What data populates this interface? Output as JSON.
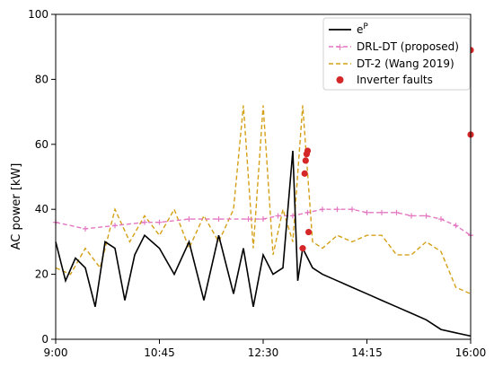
{
  "chart_data": {
    "type": "line",
    "title": "",
    "xlabel": "",
    "ylabel": "AC power [kW]",
    "xlim": [
      "9:00",
      "16:00"
    ],
    "ylim": [
      0,
      100
    ],
    "x_ticks": [
      "9:00",
      "10:45",
      "12:30",
      "14:15",
      "16:00"
    ],
    "y_ticks": [
      0,
      20,
      40,
      60,
      80,
      100
    ],
    "grid": false,
    "legend_position": "top-right",
    "legend": [
      "e^P",
      "DRL-DT (proposed)",
      "DT-2 (Wang 2019)",
      "Inverter faults"
    ],
    "colors": {
      "actual": "#000000",
      "drl_dt": "#e377c2",
      "dt2": "#d4a017",
      "faults": "#d62728"
    },
    "series": [
      {
        "name": "e^P",
        "style": "solid",
        "color": "#000000",
        "x": [
          "9:00",
          "9:10",
          "9:20",
          "9:30",
          "9:40",
          "9:50",
          "10:00",
          "10:10",
          "10:20",
          "10:30",
          "10:45",
          "11:00",
          "11:15",
          "11:30",
          "11:45",
          "12:00",
          "12:10",
          "12:20",
          "12:30",
          "12:40",
          "12:50",
          "13:00",
          "13:05",
          "13:10",
          "13:20",
          "13:30",
          "13:45",
          "14:00",
          "14:15",
          "14:30",
          "14:45",
          "15:00",
          "15:15",
          "15:30",
          "15:45",
          "16:00"
        ],
        "y": [
          30,
          18,
          25,
          22,
          10,
          30,
          28,
          12,
          26,
          32,
          28,
          20,
          30,
          12,
          32,
          14,
          28,
          10,
          26,
          20,
          22,
          58,
          18,
          28,
          22,
          20,
          18,
          16,
          14,
          12,
          10,
          8,
          6,
          3,
          2,
          1
        ]
      },
      {
        "name": "DRL-DT (proposed)",
        "style": "dash-plus",
        "color": "#e377c2",
        "x": [
          "9:00",
          "9:30",
          "10:00",
          "10:30",
          "10:45",
          "11:15",
          "11:45",
          "12:15",
          "12:30",
          "12:45",
          "13:00",
          "13:15",
          "13:30",
          "13:45",
          "14:00",
          "14:15",
          "14:30",
          "14:45",
          "15:00",
          "15:15",
          "15:30",
          "15:45",
          "16:00"
        ],
        "y": [
          36,
          34,
          35,
          36,
          36,
          37,
          37,
          37,
          37,
          38,
          38,
          39,
          40,
          40,
          40,
          39,
          39,
          39,
          38,
          38,
          37,
          35,
          32
        ]
      },
      {
        "name": "DT-2 (Wang 2019)",
        "style": "dashed",
        "color": "#d4a017",
        "x": [
          "9:00",
          "9:15",
          "9:30",
          "9:45",
          "10:00",
          "10:15",
          "10:30",
          "10:45",
          "11:00",
          "11:15",
          "11:30",
          "11:45",
          "12:00",
          "12:10",
          "12:20",
          "12:30",
          "12:40",
          "12:50",
          "13:00",
          "13:10",
          "13:20",
          "13:30",
          "13:45",
          "14:00",
          "14:15",
          "14:30",
          "14:45",
          "15:00",
          "15:15",
          "15:30",
          "15:45",
          "16:00"
        ],
        "y": [
          22,
          20,
          28,
          22,
          40,
          30,
          38,
          32,
          40,
          28,
          38,
          30,
          40,
          72,
          28,
          72,
          26,
          40,
          30,
          72,
          30,
          28,
          32,
          30,
          32,
          32,
          26,
          26,
          30,
          27,
          16,
          14
        ]
      }
    ],
    "scatter": {
      "name": "Inverter faults",
      "color": "#d62728",
      "points": [
        {
          "x": "13:10",
          "y": 28
        },
        {
          "x": "13:12",
          "y": 51
        },
        {
          "x": "13:13",
          "y": 55
        },
        {
          "x": "13:14",
          "y": 57
        },
        {
          "x": "13:15",
          "y": 58
        },
        {
          "x": "13:16",
          "y": 33
        },
        {
          "x": "16:00",
          "y": 89
        },
        {
          "x": "16:00",
          "y": 63
        }
      ]
    }
  },
  "legend": {
    "items": [
      {
        "label": "e",
        "sup": "P"
      },
      {
        "label": "DRL-DT (proposed)"
      },
      {
        "label": "DT-2 (Wang 2019)"
      },
      {
        "label": "Inverter faults"
      }
    ]
  },
  "axes": {
    "ylabel": "AC power [kW]",
    "x_ticks": [
      "9:00",
      "10:45",
      "12:30",
      "14:15",
      "16:00"
    ],
    "y_ticks": [
      "0",
      "20",
      "40",
      "60",
      "80",
      "100"
    ]
  }
}
